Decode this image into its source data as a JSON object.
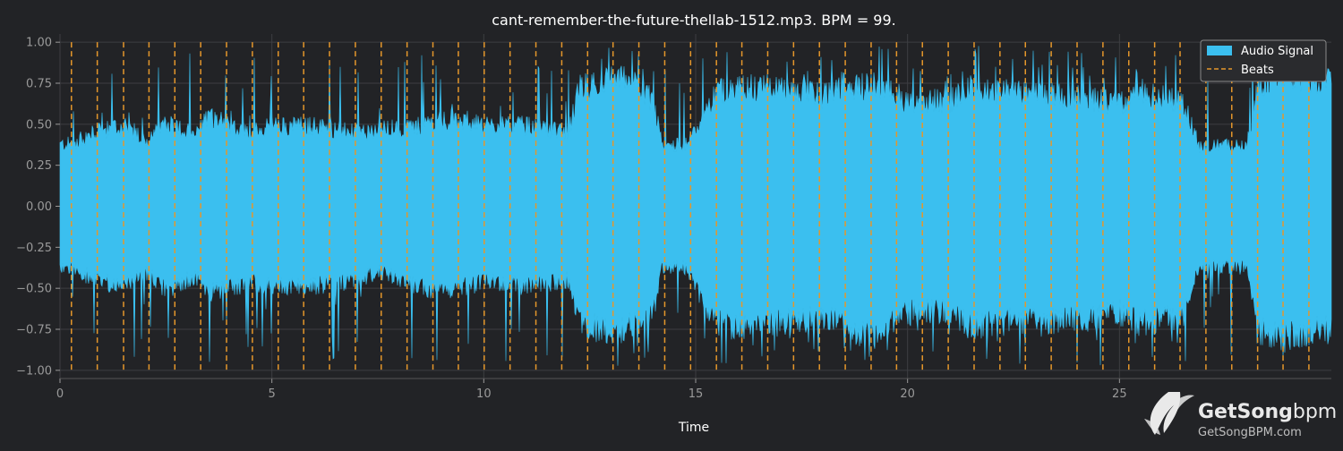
{
  "chart_data": {
    "type": "area",
    "title": "cant-remember-the-future-thellab-1512.mp3. BPM =  99.",
    "xlabel": "Time",
    "ylabel": "",
    "xlim": [
      0,
      30.0
    ],
    "ylim": [
      -1.05,
      1.05
    ],
    "x_ticks": [
      0,
      5,
      10,
      15,
      20,
      25
    ],
    "y_ticks": [
      1.0,
      0.75,
      0.5,
      0.25,
      0.0,
      -0.25,
      -0.5,
      -0.75,
      -1.0
    ],
    "y_tick_labels": [
      "1.00",
      "0.75",
      "0.50",
      "0.25",
      "0.00",
      "−0.25",
      "−0.50",
      "−0.75",
      "−1.00"
    ],
    "grid": true,
    "legend": {
      "position": "top-right",
      "entries": [
        {
          "label": "Audio Signal",
          "color": "#3bbfef",
          "style": "fill"
        },
        {
          "label": "Beats",
          "color": "#e5972b",
          "style": "dashed"
        }
      ]
    },
    "series": [
      {
        "name": "Audio Signal",
        "color": "#3bbfef",
        "envelope_x": [
          0.0,
          0.3,
          0.8,
          1.5,
          2.1,
          2.5,
          3.2,
          3.5,
          4.5,
          5.0,
          6.0,
          7.0,
          7.5,
          8.5,
          9.0,
          9.5,
          10.0,
          11.0,
          12.0,
          12.25,
          13.0,
          13.5,
          14.0,
          14.2,
          14.8,
          15.0,
          15.5,
          16.0,
          17.0,
          18.0,
          18.4,
          19.0,
          19.5,
          20.0,
          21.0,
          21.5,
          22.0,
          22.5,
          24.0,
          25.0,
          25.5,
          26.5,
          26.9,
          28.0,
          28.3,
          29.0,
          29.5,
          30.0
        ],
        "envelope_upper": [
          0.42,
          0.43,
          0.5,
          0.55,
          0.45,
          0.58,
          0.48,
          0.62,
          0.5,
          0.55,
          0.55,
          0.5,
          0.52,
          0.55,
          0.6,
          0.58,
          0.55,
          0.55,
          0.5,
          0.8,
          0.88,
          0.85,
          0.72,
          0.42,
          0.42,
          0.55,
          0.78,
          0.82,
          0.8,
          0.75,
          0.82,
          0.82,
          0.82,
          0.72,
          0.72,
          0.82,
          0.8,
          0.78,
          0.75,
          0.7,
          0.78,
          0.72,
          0.4,
          0.42,
          0.85,
          0.9,
          0.86,
          0.84
        ],
        "envelope_lower": [
          -0.42,
          -0.42,
          -0.5,
          -0.55,
          -0.45,
          -0.58,
          -0.48,
          -0.6,
          -0.52,
          -0.55,
          -0.55,
          -0.5,
          -0.45,
          -0.55,
          -0.58,
          -0.55,
          -0.52,
          -0.55,
          -0.5,
          -0.8,
          -0.86,
          -0.82,
          -0.72,
          -0.42,
          -0.42,
          -0.55,
          -0.8,
          -0.82,
          -0.8,
          -0.75,
          -0.8,
          -0.88,
          -0.82,
          -0.72,
          -0.72,
          -0.82,
          -0.8,
          -0.78,
          -0.78,
          -0.72,
          -0.8,
          -0.75,
          -0.4,
          -0.42,
          -0.85,
          -0.9,
          -0.86,
          -0.84
        ]
      },
      {
        "name": "Beats",
        "color": "#e5972b",
        "beat_times": [
          0.27,
          0.88,
          1.5,
          2.1,
          2.71,
          3.32,
          3.93,
          4.54,
          5.15,
          5.75,
          6.36,
          6.97,
          7.58,
          8.19,
          8.8,
          9.4,
          10.01,
          10.62,
          11.23,
          11.84,
          12.45,
          13.05,
          13.66,
          14.27,
          14.88,
          15.49,
          16.09,
          16.7,
          17.31,
          17.92,
          18.53,
          19.14,
          19.74,
          20.35,
          20.96,
          21.57,
          22.18,
          22.78,
          23.39,
          24.0,
          24.61,
          25.22,
          25.83,
          26.43,
          27.04,
          27.65,
          28.26,
          28.86,
          29.47
        ]
      }
    ]
  },
  "watermark": {
    "brand_part1": "GetSong",
    "brand_part2": "bpm",
    "url": "GetSongBPM.com"
  }
}
